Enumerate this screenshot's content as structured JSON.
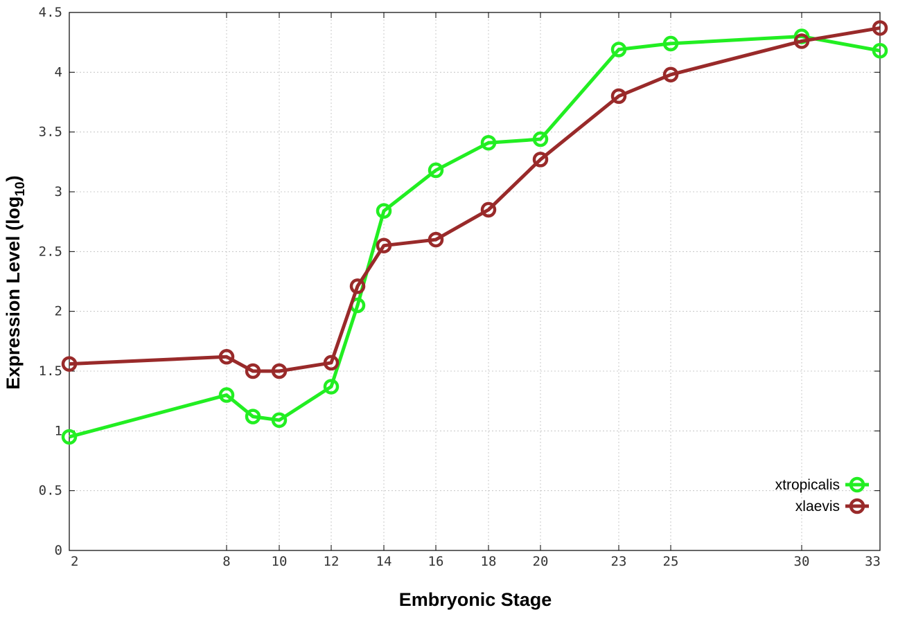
{
  "chart_data": {
    "type": "line",
    "xlabel": "Embryonic Stage",
    "ylabel": "Expression Level (log",
    "ylabel_sub": "10",
    "ylabel_close": ")",
    "x": [
      2,
      8,
      9,
      10,
      12,
      13,
      14,
      16,
      18,
      20,
      23,
      25,
      30,
      33
    ],
    "xticks": [
      2,
      8,
      10,
      12,
      14,
      16,
      18,
      20,
      23,
      25,
      30,
      33
    ],
    "xtick_labels": [
      "2",
      "8",
      "10",
      "12",
      "14",
      "16",
      "18",
      "20",
      "23",
      "25",
      "30",
      "33"
    ],
    "yticks": [
      0,
      0.5,
      1,
      1.5,
      2,
      2.5,
      3,
      3.5,
      4,
      4.5
    ],
    "ytick_labels": [
      "0",
      "0.5",
      "1",
      "1.5",
      "2",
      "2.5",
      "3",
      "3.5",
      "4",
      "4.5"
    ],
    "ylim": [
      0,
      4.5
    ],
    "x_scale": "nonlinear stage axis",
    "grid": true,
    "legend_position": "bottom-right",
    "series": [
      {
        "name": "xtropicalis",
        "color": "#22ee22",
        "values": [
          0.95,
          1.3,
          1.12,
          1.09,
          1.37,
          2.05,
          2.84,
          3.18,
          3.41,
          3.44,
          4.19,
          4.24,
          4.3,
          4.18
        ]
      },
      {
        "name": "xlaevis",
        "color": "#992a2a",
        "values": [
          1.56,
          1.62,
          1.5,
          1.5,
          1.57,
          2.21,
          2.55,
          2.6,
          2.85,
          3.27,
          3.8,
          3.98,
          4.26,
          4.37
        ]
      }
    ]
  }
}
